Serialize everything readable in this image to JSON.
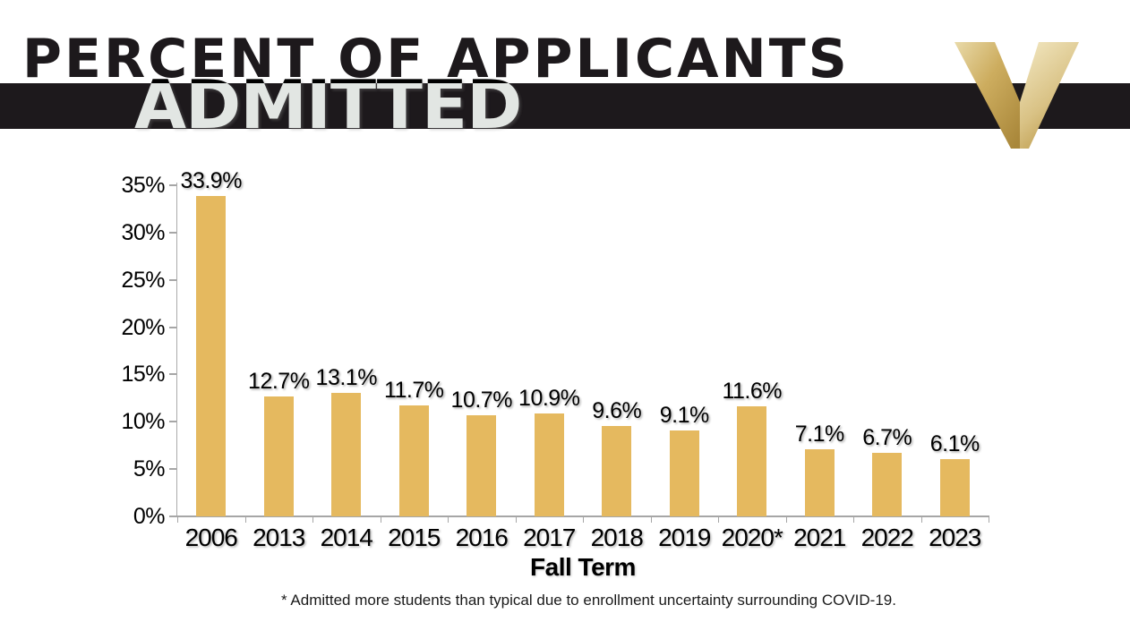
{
  "header": {
    "title_line1": "PERCENT OF APPLICANTS",
    "title_line2": "ADMITTED",
    "band_color": "#1D191C",
    "title_color": "#1D191C",
    "logo": {
      "name": "vanderbilt-v-logo",
      "gold_light": "#F0E4BC",
      "gold_mid": "#D6BE83",
      "gold_dark": "#AE8B3B",
      "gold_deep": "#9C7C30"
    }
  },
  "chart_data": {
    "type": "bar",
    "title": "Percent of Applicants Admitted",
    "categories": [
      "2006",
      "2013",
      "2014",
      "2015",
      "2016",
      "2017",
      "2018",
      "2019",
      "2020*",
      "2021",
      "2022",
      "2023"
    ],
    "values": [
      33.9,
      12.7,
      13.1,
      11.7,
      10.7,
      10.9,
      9.6,
      9.1,
      11.6,
      7.1,
      6.7,
      6.1
    ],
    "value_labels": [
      "33.9%",
      "12.7%",
      "13.1%",
      "11.7%",
      "10.7%",
      "10.9%",
      "9.6%",
      "9.1%",
      "11.6%",
      "7.1%",
      "6.7%",
      "6.1%"
    ],
    "xlabel": "Fall Term",
    "ylabel": "",
    "ylim": [
      0,
      35
    ],
    "ytick_interval": 5,
    "yticks": [
      "0%",
      "5%",
      "10%",
      "15%",
      "20%",
      "25%",
      "30%",
      "35%"
    ],
    "bar_color": "#E5B95F",
    "axis_color": "#A6A6A6",
    "grid": false,
    "legend": false
  },
  "footnote": "* Admitted more students than typical due to enrollment uncertainty surrounding COVID-19."
}
